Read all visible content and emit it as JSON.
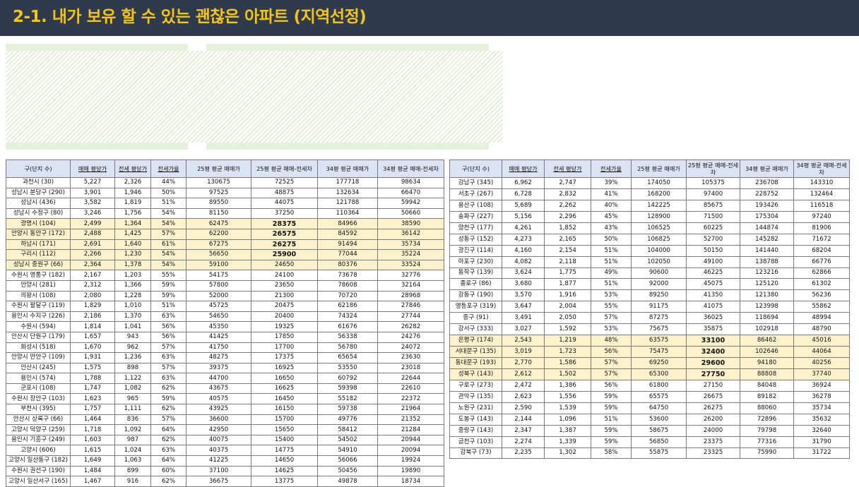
{
  "title": "2-1. 내가 보유 할 수 있는 괜찮은 아파트 (지역선정)",
  "colors": {
    "header_bg": "#2f3a4c",
    "title": "#f5c41a",
    "table_header": "#dbe3f4",
    "highlight": "#fdf2cc"
  },
  "columns": [
    "구(단지 수)",
    "매매 평당가",
    "전세 평당가",
    "전세가율",
    "25평 평균 매매가",
    "25평 평균 매매-전세차",
    "34평 평균 매매가",
    "34평 평균 매매-전세차"
  ],
  "left_table": [
    [
      "과천시 (30)",
      "5,227",
      "2,326",
      "44%",
      "130675",
      "72525",
      "177718",
      "98634"
    ],
    [
      "성남시 분당구 (290)",
      "3,901",
      "1,946",
      "50%",
      "97525",
      "48875",
      "132634",
      "66470"
    ],
    [
      "성남시 (436)",
      "3,582",
      "1,819",
      "51%",
      "89550",
      "44075",
      "121788",
      "59942"
    ],
    [
      "성남시 수정구 (80)",
      "3,246",
      "1,756",
      "54%",
      "81150",
      "37250",
      "110364",
      "50660"
    ],
    [
      "광명시 (104)",
      "2,499",
      "1,364",
      "54%",
      "62475",
      "28375",
      "84966",
      "38590"
    ],
    [
      "안양시 동안구 (172)",
      "2,488",
      "1,425",
      "57%",
      "62200",
      "26575",
      "84592",
      "36142"
    ],
    [
      "하남시 (171)",
      "2,691",
      "1,640",
      "61%",
      "67275",
      "26275",
      "91494",
      "35734"
    ],
    [
      "구리시 (112)",
      "2,266",
      "1,230",
      "54%",
      "56650",
      "25900",
      "77044",
      "35224"
    ],
    [
      "성남시 중원구 (66)",
      "2,364",
      "1,378",
      "54%",
      "59100",
      "24650",
      "80376",
      "33524"
    ],
    [
      "수원시 영통구 (182)",
      "2,167",
      "1,203",
      "55%",
      "54175",
      "24100",
      "73678",
      "32776"
    ],
    [
      "안양시 (281)",
      "2,312",
      "1,366",
      "59%",
      "57800",
      "23650",
      "78608",
      "32164"
    ],
    [
      "의왕시 (108)",
      "2,080",
      "1,228",
      "59%",
      "52000",
      "21300",
      "70720",
      "28968"
    ],
    [
      "수원시 팔달구 (119)",
      "1,829",
      "1,010",
      "51%",
      "45725",
      "20475",
      "62186",
      "27846"
    ],
    [
      "용인시 수지구 (226)",
      "2,186",
      "1,370",
      "63%",
      "54650",
      "20400",
      "74324",
      "27744"
    ],
    [
      "수원시 (594)",
      "1,814",
      "1,041",
      "56%",
      "45350",
      "19325",
      "61676",
      "26282"
    ],
    [
      "안산시 단원구 (179)",
      "1,657",
      "943",
      "56%",
      "41425",
      "17850",
      "56338",
      "24276"
    ],
    [
      "화성시 (518)",
      "1,670",
      "962",
      "57%",
      "41750",
      "17700",
      "56780",
      "24072"
    ],
    [
      "안양시 만안구 (109)",
      "1,931",
      "1,236",
      "63%",
      "48275",
      "17375",
      "65654",
      "23630"
    ],
    [
      "안산시 (245)",
      "1,575",
      "898",
      "57%",
      "39375",
      "16925",
      "53550",
      "23018"
    ],
    [
      "용인시 (574)",
      "1,788",
      "1,122",
      "63%",
      "44700",
      "16650",
      "60792",
      "22644"
    ],
    [
      "군포시 (108)",
      "1,747",
      "1,082",
      "62%",
      "43675",
      "16625",
      "59398",
      "22610"
    ],
    [
      "수원시 장안구 (103)",
      "1,623",
      "965",
      "59%",
      "40575",
      "16450",
      "55182",
      "22372"
    ],
    [
      "부천시 (395)",
      "1,757",
      "1,111",
      "62%",
      "43925",
      "16150",
      "59738",
      "21964"
    ],
    [
      "안산시 상록구 (66)",
      "1,464",
      "836",
      "57%",
      "36600",
      "15700",
      "49776",
      "21352"
    ],
    [
      "고양시 덕양구 (259)",
      "1,718",
      "1,092",
      "64%",
      "42950",
      "15650",
      "58412",
      "21284"
    ],
    [
      "용인시 기흥구 (249)",
      "1,603",
      "987",
      "62%",
      "40075",
      "15400",
      "54502",
      "20944"
    ],
    [
      "고양시 (606)",
      "1,615",
      "1,024",
      "63%",
      "40375",
      "14775",
      "54910",
      "20094"
    ],
    [
      "고양시 일산동구 (182)",
      "1,649",
      "1,063",
      "64%",
      "41225",
      "14650",
      "56066",
      "19924"
    ],
    [
      "수원시 권선구 (190)",
      "1,484",
      "899",
      "60%",
      "37100",
      "14625",
      "50456",
      "19890"
    ],
    [
      "고양시 일산서구 (165)",
      "1,467",
      "916",
      "62%",
      "36675",
      "13775",
      "49878",
      "18734"
    ]
  ],
  "right_table": [
    [
      "강남구 (345)",
      "6,962",
      "2,747",
      "39%",
      "174050",
      "105375",
      "236708",
      "143310"
    ],
    [
      "서초구 (267)",
      "6,728",
      "2,832",
      "41%",
      "168200",
      "97400",
      "228752",
      "132464"
    ],
    [
      "용산구 (108)",
      "5,689",
      "2,262",
      "40%",
      "142225",
      "85675",
      "193426",
      "116518"
    ],
    [
      "송파구 (227)",
      "5,156",
      "2,296",
      "45%",
      "128900",
      "71500",
      "175304",
      "97240"
    ],
    [
      "양천구 (177)",
      "4,261",
      "1,852",
      "43%",
      "106525",
      "60225",
      "144874",
      "81906"
    ],
    [
      "성동구 (152)",
      "4,273",
      "2,165",
      "50%",
      "106825",
      "52700",
      "145282",
      "71672"
    ],
    [
      "광진구 (114)",
      "4,160",
      "2,154",
      "51%",
      "104000",
      "50150",
      "141440",
      "68204"
    ],
    [
      "마포구 (230)",
      "4,082",
      "2,118",
      "51%",
      "102050",
      "49100",
      "138788",
      "66776"
    ],
    [
      "동작구 (139)",
      "3,624",
      "1,775",
      "49%",
      "90600",
      "46225",
      "123216",
      "62866"
    ],
    [
      "종로구 (86)",
      "3,680",
      "1,877",
      "51%",
      "92000",
      "45075",
      "125120",
      "61302"
    ],
    [
      "강동구 (190)",
      "3,570",
      "1,916",
      "53%",
      "89250",
      "41350",
      "121380",
      "56236"
    ],
    [
      "영등포구 (319)",
      "3,647",
      "2,004",
      "55%",
      "91175",
      "41075",
      "123998",
      "55862"
    ],
    [
      "중구 (91)",
      "3,491",
      "2,050",
      "57%",
      "87275",
      "36025",
      "118694",
      "48994"
    ],
    [
      "강서구 (333)",
      "3,027",
      "1,592",
      "53%",
      "75675",
      "35875",
      "102918",
      "48790"
    ],
    [
      "은평구 (174)",
      "2,543",
      "1,219",
      "48%",
      "63575",
      "33100",
      "86462",
      "45016"
    ],
    [
      "서대문구 (135)",
      "3,019",
      "1,723",
      "56%",
      "75475",
      "32400",
      "102646",
      "44064"
    ],
    [
      "동대문구 (193)",
      "2,770",
      "1,586",
      "57%",
      "69250",
      "29600",
      "94180",
      "40256"
    ],
    [
      "성북구 (143)",
      "2,612",
      "1,502",
      "57%",
      "65300",
      "27750",
      "88808",
      "37740"
    ],
    [
      "구로구 (273)",
      "2,472",
      "1,386",
      "56%",
      "61800",
      "27150",
      "84048",
      "36924"
    ],
    [
      "관악구 (135)",
      "2,623",
      "1,556",
      "59%",
      "65575",
      "26675",
      "89182",
      "36278"
    ],
    [
      "노원구 (231)",
      "2,590",
      "1,539",
      "59%",
      "64750",
      "26275",
      "88060",
      "35734"
    ],
    [
      "도봉구 (143)",
      "2,144",
      "1,096",
      "51%",
      "53600",
      "26200",
      "72896",
      "35632"
    ],
    [
      "중랑구 (143)",
      "2,347",
      "1,387",
      "59%",
      "58675",
      "24000",
      "79798",
      "32640"
    ],
    [
      "금천구 (103)",
      "2,274",
      "1,339",
      "59%",
      "56850",
      "23375",
      "77316",
      "31790"
    ],
    [
      "강북구 (73)",
      "2,235",
      "1,302",
      "58%",
      "55875",
      "23325",
      "75990",
      "31722"
    ]
  ]
}
